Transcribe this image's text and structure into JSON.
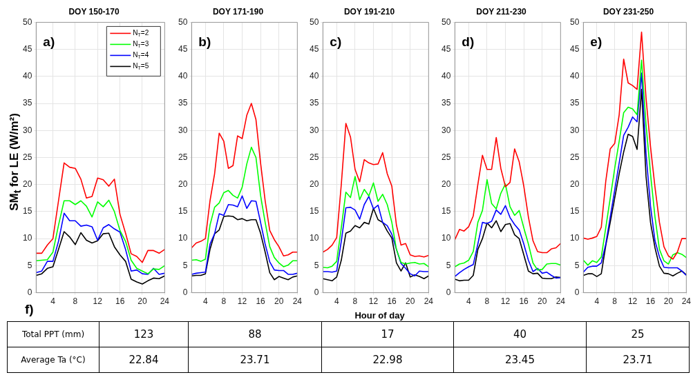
{
  "chart_data": [
    {
      "type": "line",
      "title": "DOY 150-170",
      "ylabel": "SM$_{t}$ for LE (W/m²)",
      "annotations": [
        "a)"
      ],
      "x": [
        1,
        2,
        3,
        4,
        5,
        6,
        7,
        8,
        9,
        10,
        11,
        12,
        13,
        14,
        15,
        16,
        17,
        18,
        19,
        20,
        21,
        22,
        23,
        24
      ],
      "xlim": [
        1,
        24
      ],
      "xticks": [
        4,
        8,
        12,
        16,
        20,
        24
      ],
      "ylim": [
        0,
        50
      ],
      "yticks": [
        0,
        5,
        10,
        15,
        20,
        25,
        30,
        35,
        40,
        45,
        50
      ],
      "grid": true,
      "legend": "top right",
      "marker": "none",
      "series": [
        {
          "name": "N$_{T}$=2",
          "color": "#ff0000",
          "values": [
            7.3,
            7.3,
            8.8,
            10,
            17,
            24,
            23.2,
            23,
            21,
            17.5,
            17.8,
            21.2,
            20.9,
            19.7,
            21,
            14.5,
            11,
            7.2,
            6.7,
            5.6,
            7.8,
            7.8,
            7.3,
            8
          ]
        },
        {
          "name": "N$_{T}$=3",
          "color": "#00ff00",
          "values": [
            5.9,
            6,
            6.1,
            7.5,
            12.5,
            17,
            17,
            16.3,
            17,
            16,
            14,
            16.8,
            15.9,
            17.1,
            15,
            11.5,
            9.5,
            6,
            4.5,
            4,
            3.5,
            4.4,
            4.3,
            5
          ]
        },
        {
          "name": "N$_{T}$=4",
          "color": "#0000ff",
          "values": [
            3.7,
            4,
            5.8,
            5.8,
            9.5,
            14.7,
            13.3,
            13.3,
            12.3,
            12.5,
            12.2,
            9.7,
            12,
            12.6,
            11.8,
            11.2,
            8,
            4,
            4.2,
            3.5,
            3.4,
            4.5,
            3.4,
            3.6
          ]
        },
        {
          "name": "N$_{T}$=5",
          "color": "#000000",
          "values": [
            3.2,
            3.5,
            4.5,
            4.8,
            8,
            11.3,
            10.3,
            8.9,
            11.1,
            9.7,
            9.2,
            9.6,
            10.9,
            11,
            8.5,
            7,
            5.8,
            2.5,
            2,
            1.6,
            2.2,
            2.7,
            2.6,
            3.1
          ]
        }
      ]
    },
    {
      "type": "line",
      "title": "DOY 171-190",
      "annotations": [
        "b)"
      ],
      "x": [
        1,
        2,
        3,
        4,
        5,
        6,
        7,
        8,
        9,
        10,
        11,
        12,
        13,
        14,
        15,
        16,
        17,
        18,
        19,
        20,
        21,
        22,
        23,
        24
      ],
      "xlim": [
        1,
        24
      ],
      "xticks": [
        4,
        8,
        12,
        16,
        20,
        24
      ],
      "ylim": [
        0,
        50
      ],
      "yticks": [
        0,
        5,
        10,
        15,
        20,
        25,
        30,
        35,
        40,
        45,
        50
      ],
      "grid": true,
      "marker": "none",
      "series": [
        {
          "color": "#ff0000",
          "values": [
            8.3,
            9.2,
            9.5,
            10,
            17,
            22,
            29.5,
            28,
            23,
            23.5,
            29,
            28.5,
            32.8,
            35,
            32,
            24,
            17,
            11.5,
            9.8,
            8.5,
            6.8,
            7,
            7.5,
            7.5
          ]
        },
        {
          "color": "#00ff00",
          "values": [
            6,
            6.1,
            5.8,
            6.2,
            12.5,
            15.8,
            16.6,
            18.5,
            18.9,
            18,
            17.5,
            19.5,
            23.8,
            26.9,
            25,
            18,
            13,
            8.5,
            6.5,
            5.5,
            4.8,
            5.1,
            5.9,
            5.9
          ]
        },
        {
          "color": "#0000ff",
          "values": [
            3.4,
            3.6,
            3.7,
            3.8,
            9,
            10.9,
            14.6,
            14.3,
            16.3,
            16.2,
            15.9,
            17.9,
            15.6,
            17,
            16.9,
            13,
            9,
            5.7,
            4.2,
            4.1,
            4.1,
            3.4,
            3.4,
            3.6
          ]
        },
        {
          "color": "#000000",
          "values": [
            3.1,
            3.2,
            3.2,
            3.5,
            8,
            10.9,
            11.6,
            14.1,
            14.2,
            14.1,
            13.5,
            13.7,
            13.3,
            13.5,
            13.5,
            11,
            7.5,
            3.7,
            2.4,
            3,
            2.7,
            2.4,
            2.9,
            3.1
          ]
        }
      ]
    },
    {
      "type": "line",
      "title": "DOY 191-210",
      "xlabel": "Hour of day",
      "annotations": [
        "c)"
      ],
      "x": [
        1,
        2,
        3,
        4,
        5,
        6,
        7,
        8,
        9,
        10,
        11,
        12,
        13,
        14,
        15,
        16,
        17,
        18,
        19,
        20,
        21,
        22,
        23,
        24
      ],
      "xlim": [
        1,
        24
      ],
      "xticks": [
        4,
        8,
        12,
        16,
        20,
        24
      ],
      "ylim": [
        0,
        50
      ],
      "yticks": [
        0,
        5,
        10,
        15,
        20,
        25,
        30,
        35,
        40,
        45,
        50
      ],
      "grid": true,
      "marker": "none",
      "series": [
        {
          "color": "#ff0000",
          "values": [
            7.5,
            8,
            8.8,
            10.2,
            20,
            31.3,
            28.8,
            22.8,
            20.5,
            24.6,
            24,
            23.7,
            23.8,
            25.9,
            22,
            19.7,
            12.5,
            8.8,
            9.1,
            7,
            6.7,
            6.8,
            6.6,
            6.9
          ]
        },
        {
          "color": "#00ff00",
          "values": [
            4.7,
            4.6,
            4.9,
            5.8,
            12,
            18.6,
            17.6,
            21.5,
            17.2,
            19.1,
            17.9,
            20.3,
            16.9,
            18.2,
            16.3,
            13,
            8,
            5.6,
            5.3,
            5.5,
            5.6,
            5.3,
            5.4,
            4.8
          ]
        },
        {
          "color": "#0000ff",
          "values": [
            3.9,
            3.9,
            3.8,
            4,
            9.5,
            15.7,
            15.8,
            15.3,
            13.6,
            16.3,
            17.8,
            15.5,
            16.2,
            13,
            12.4,
            10.8,
            8,
            5.4,
            4.5,
            3.5,
            3.1,
            4,
            3.9,
            3.9
          ]
        },
        {
          "color": "#000000",
          "values": [
            2.6,
            2.4,
            2.2,
            2.9,
            6,
            11,
            11.4,
            12.4,
            12,
            13,
            12.7,
            15.6,
            13.5,
            13,
            11.4,
            10.1,
            5.5,
            4,
            5.5,
            2.9,
            3.3,
            3,
            2.6,
            3.1
          ]
        }
      ]
    },
    {
      "type": "line",
      "title": "DOY 211-230",
      "annotations": [
        "d)"
      ],
      "x": [
        1,
        2,
        3,
        4,
        5,
        6,
        7,
        8,
        9,
        10,
        11,
        12,
        13,
        14,
        15,
        16,
        17,
        18,
        19,
        20,
        21,
        22,
        23,
        24
      ],
      "xlim": [
        1,
        24
      ],
      "xticks": [
        4,
        8,
        12,
        16,
        20,
        24
      ],
      "ylim": [
        0,
        50
      ],
      "yticks": [
        0,
        5,
        10,
        15,
        20,
        25,
        30,
        35,
        40,
        45,
        50
      ],
      "grid": true,
      "marker": "none",
      "series": [
        {
          "color": "#ff0000",
          "values": [
            9.8,
            11.7,
            11.4,
            12.2,
            14.2,
            20,
            25.4,
            22.8,
            22.8,
            28.7,
            23,
            19.6,
            20.4,
            26.6,
            24.2,
            19.7,
            14,
            9.6,
            7.6,
            7.4,
            7.4,
            8.1,
            8.3,
            9.1
          ]
        },
        {
          "color": "#00ff00",
          "values": [
            4.8,
            5.3,
            5.5,
            6,
            7.6,
            13,
            15.2,
            20.9,
            16.5,
            15.5,
            18.4,
            20.1,
            15.9,
            14.3,
            15.2,
            12,
            9,
            5.5,
            4.2,
            4.3,
            5.3,
            5.4,
            5.4,
            5.1
          ]
        },
        {
          "color": "#0000ff",
          "values": [
            3,
            3.7,
            4.3,
            4.8,
            5.2,
            9,
            13,
            12.8,
            13.2,
            15.3,
            14.5,
            16.1,
            13.9,
            12.6,
            11.6,
            9,
            6,
            3.9,
            4.5,
            3.6,
            3.8,
            3.2,
            2.7,
            2.8
          ]
        },
        {
          "color": "#000000",
          "values": [
            2.5,
            2.2,
            2.3,
            2.3,
            3.2,
            8,
            10,
            12.9,
            12,
            13.3,
            11.3,
            12.6,
            12.8,
            10.7,
            10,
            7,
            4,
            3.5,
            3.6,
            2.7,
            2.6,
            2.6,
            2.9,
            2.8
          ]
        }
      ]
    },
    {
      "type": "line",
      "title": "DOY 231-250",
      "annotations": [
        "e)"
      ],
      "x": [
        1,
        2,
        3,
        4,
        5,
        6,
        7,
        8,
        9,
        10,
        11,
        12,
        13,
        14,
        15,
        16,
        17,
        18,
        19,
        20,
        21,
        22,
        23,
        24
      ],
      "xlim": [
        1,
        24
      ],
      "xticks": [
        4,
        8,
        12,
        16,
        20,
        24
      ],
      "ylim": [
        0,
        50
      ],
      "yticks": [
        0,
        5,
        10,
        15,
        20,
        25,
        30,
        35,
        40,
        45,
        50
      ],
      "grid": true,
      "marker": "none",
      "series": [
        {
          "color": "#ff0000",
          "values": [
            10.1,
            9.9,
            10.1,
            10.4,
            12.1,
            20.6,
            26.6,
            27.6,
            32.9,
            43.2,
            38.8,
            38.3,
            37.6,
            48.2,
            36,
            27,
            19.5,
            13,
            8.5,
            6.8,
            6.2,
            7.5,
            10,
            10
          ]
        },
        {
          "color": "#00ff00",
          "values": [
            6,
            5.1,
            5.9,
            5.6,
            6.6,
            12,
            17.5,
            23,
            28,
            33.3,
            34.3,
            34,
            32.9,
            43,
            31,
            22,
            14,
            8,
            5.9,
            5.3,
            7,
            7.4,
            7.1,
            6.5
          ]
        },
        {
          "color": "#0000ff",
          "values": [
            3.8,
            4.7,
            4.9,
            4.9,
            5.5,
            9,
            14,
            19,
            24,
            29.1,
            30.6,
            32.5,
            31.6,
            40.6,
            25.7,
            16,
            9.6,
            6.6,
            4.7,
            4.6,
            4.6,
            4.6,
            4,
            3.2
          ]
        },
        {
          "color": "#000000",
          "values": [
            3.2,
            3.5,
            3.5,
            3,
            3.5,
            8.7,
            13,
            17.5,
            22,
            26,
            29.3,
            28.9,
            26.5,
            37.6,
            21.5,
            13,
            8.3,
            4.9,
            3.6,
            3.5,
            3.1,
            3.6,
            4,
            3.3
          ]
        }
      ]
    },
    {
      "type": "other",
      "title": "f)",
      "annotations": [
        "Total PPT (mm)",
        "123",
        "88",
        "17",
        "40",
        "25",
        "Average Ta (°C)",
        "22.84",
        "23.71",
        "22.98",
        "23.45",
        "23.71"
      ]
    }
  ]
}
